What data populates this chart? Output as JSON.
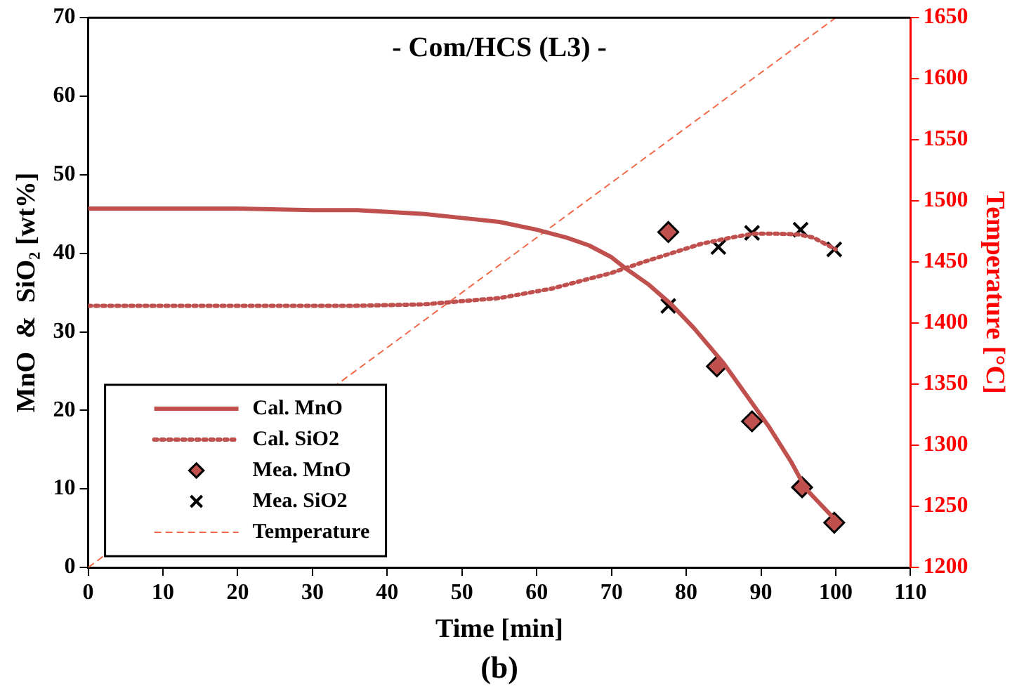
{
  "chart_data": {
    "type": "line",
    "title": "- Com/HCS (L3) -",
    "xlabel": "Time [min]",
    "ylabel": "MnO  &  SiO₂ [wt%]",
    "y2label": "Temperature [°C]",
    "xlim": [
      0,
      110
    ],
    "xticks": [
      0,
      10,
      20,
      30,
      40,
      50,
      60,
      70,
      80,
      90,
      100,
      110
    ],
    "ylim": [
      0,
      70
    ],
    "yticks": [
      0,
      10,
      20,
      30,
      40,
      50,
      60,
      70
    ],
    "y2lim": [
      1200,
      1650
    ],
    "y2ticks": [
      1200,
      1250,
      1300,
      1350,
      1400,
      1450,
      1500,
      1550,
      1600,
      1650
    ],
    "grid": false,
    "legend": "bottom left",
    "annotations": [
      "(b)"
    ],
    "series": [
      {
        "name": "Cal. MnO",
        "type": "line",
        "color": "#c0504d",
        "line_style": "solid",
        "marker": "none",
        "x": [
          0,
          10,
          20,
          30,
          36,
          45,
          50,
          55,
          60,
          64,
          67,
          70,
          72,
          75,
          78,
          81,
          85,
          88,
          91,
          94,
          96,
          98,
          100
        ],
        "values": [
          45.7,
          45.7,
          45.7,
          45.5,
          45.5,
          45,
          44.5,
          44,
          43,
          42,
          41,
          39.5,
          38,
          36,
          33.5,
          30.5,
          26,
          22,
          18,
          13.5,
          10,
          8,
          6
        ]
      },
      {
        "name": "Cal. SiO2",
        "type": "line",
        "color": "#c0504d",
        "line_style": "dotted",
        "marker": "none",
        "x": [
          0,
          10,
          20,
          30,
          35,
          45,
          55,
          62,
          66,
          70,
          74,
          78,
          82,
          86,
          89,
          92,
          95,
          97,
          100
        ],
        "values": [
          33.3,
          33.3,
          33.3,
          33.3,
          33.3,
          33.5,
          34.3,
          35.5,
          36.5,
          37.5,
          38.8,
          40,
          41.2,
          42,
          42.5,
          42.5,
          42.4,
          42,
          40.5
        ]
      },
      {
        "name": "Mea. MnO",
        "type": "scatter",
        "color": "#c0504d",
        "marker": "diamond",
        "x": [
          77.6,
          84.1,
          88.8,
          95.5,
          99.8
        ],
        "values": [
          42.7,
          25.6,
          18.6,
          10.2,
          5.7
        ]
      },
      {
        "name": "Mea. SiO2",
        "type": "scatter",
        "color": "#000000",
        "marker": "cross",
        "x": [
          77.6,
          84.3,
          88.8,
          95.3,
          99.8
        ],
        "values": [
          33.3,
          40.8,
          42.6,
          43.0,
          40.5
        ]
      },
      {
        "name": "Temperature",
        "type": "line",
        "axis": "y2",
        "color": "#f26b4a",
        "line_style": "dashed",
        "marker": "none",
        "x": [
          0,
          100
        ],
        "values": [
          1200,
          1650
        ]
      }
    ]
  }
}
